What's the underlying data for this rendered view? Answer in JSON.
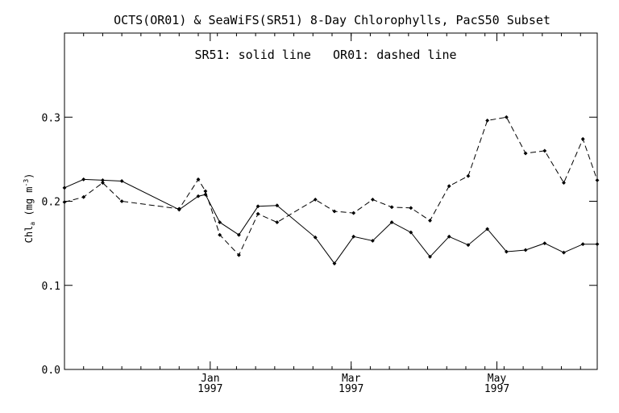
{
  "chart_data": {
    "type": "line",
    "title": "OCTS(OR01) & SeaWiFS(SR51) 8-Day Chlorophylls, PacS50 Subset",
    "legend_note": "SR51: solid line   OR01: dashed line",
    "ylabel_main": "Chl",
    "ylabel_sub": "a",
    "ylabel_units_pre": " (mg m",
    "ylabel_units_sup": "-3",
    "ylabel_units_post": ")",
    "ylim": [
      0.0,
      0.4
    ],
    "yticks": [
      0.0,
      0.1,
      0.2,
      0.3
    ],
    "ytick_labels": [
      "0.0",
      "0.1",
      "0.2",
      "0.3"
    ],
    "xlim": [
      "1996-11-01",
      "1997-06-12"
    ],
    "xticks": [
      {
        "date": "1997-01-01",
        "label": "Jan",
        "year": "1997"
      },
      {
        "date": "1997-03-01",
        "label": "Mar",
        "year": "1997"
      },
      {
        "date": "1997-05-01",
        "label": "May",
        "year": "1997"
      }
    ],
    "series": [
      {
        "name": "SR51",
        "style": "solid",
        "x": [
          "1996-11-01",
          "1996-11-09",
          "1996-11-17",
          "1996-11-25",
          "1996-12-19",
          "1996-12-27",
          "1996-12-30",
          "1997-01-05",
          "1997-01-13",
          "1997-01-21",
          "1997-01-29",
          "1997-02-14",
          "1997-02-22",
          "1997-03-02",
          "1997-03-10",
          "1997-03-18",
          "1997-03-26",
          "1997-04-03",
          "1997-04-11",
          "1997-04-19",
          "1997-04-27",
          "1997-05-05",
          "1997-05-13",
          "1997-05-21",
          "1997-05-29",
          "1997-06-06",
          "1997-06-12"
        ],
        "y": [
          0.216,
          0.226,
          0.225,
          0.224,
          0.19,
          0.206,
          0.208,
          0.175,
          0.16,
          0.194,
          0.195,
          0.157,
          0.126,
          0.158,
          0.153,
          0.175,
          0.163,
          0.134,
          0.158,
          0.148,
          0.167,
          0.14,
          0.142,
          0.15,
          0.139,
          0.149,
          0.149
        ]
      },
      {
        "name": "OR01",
        "style": "dashed",
        "x": [
          "1996-11-01",
          "1996-11-09",
          "1996-11-17",
          "1996-11-25",
          "1996-12-19",
          "1996-12-27",
          "1996-12-30",
          "1997-01-05",
          "1997-01-13",
          "1997-01-21",
          "1997-01-29",
          "1997-02-14",
          "1997-02-22",
          "1997-03-02",
          "1997-03-10",
          "1997-03-18",
          "1997-03-26",
          "1997-04-03",
          "1997-04-11",
          "1997-04-19",
          "1997-04-27",
          "1997-05-05",
          "1997-05-13",
          "1997-05-21",
          "1997-05-29",
          "1997-06-06",
          "1997-06-12"
        ],
        "y": [
          0.199,
          0.205,
          0.222,
          0.2,
          0.191,
          0.226,
          0.212,
          0.16,
          0.136,
          0.185,
          0.175,
          0.202,
          0.188,
          0.186,
          0.202,
          0.193,
          0.192,
          0.177,
          0.218,
          0.23,
          0.296,
          0.3,
          0.257,
          0.26,
          0.222,
          0.274,
          0.225
        ]
      }
    ],
    "grid": false
  }
}
